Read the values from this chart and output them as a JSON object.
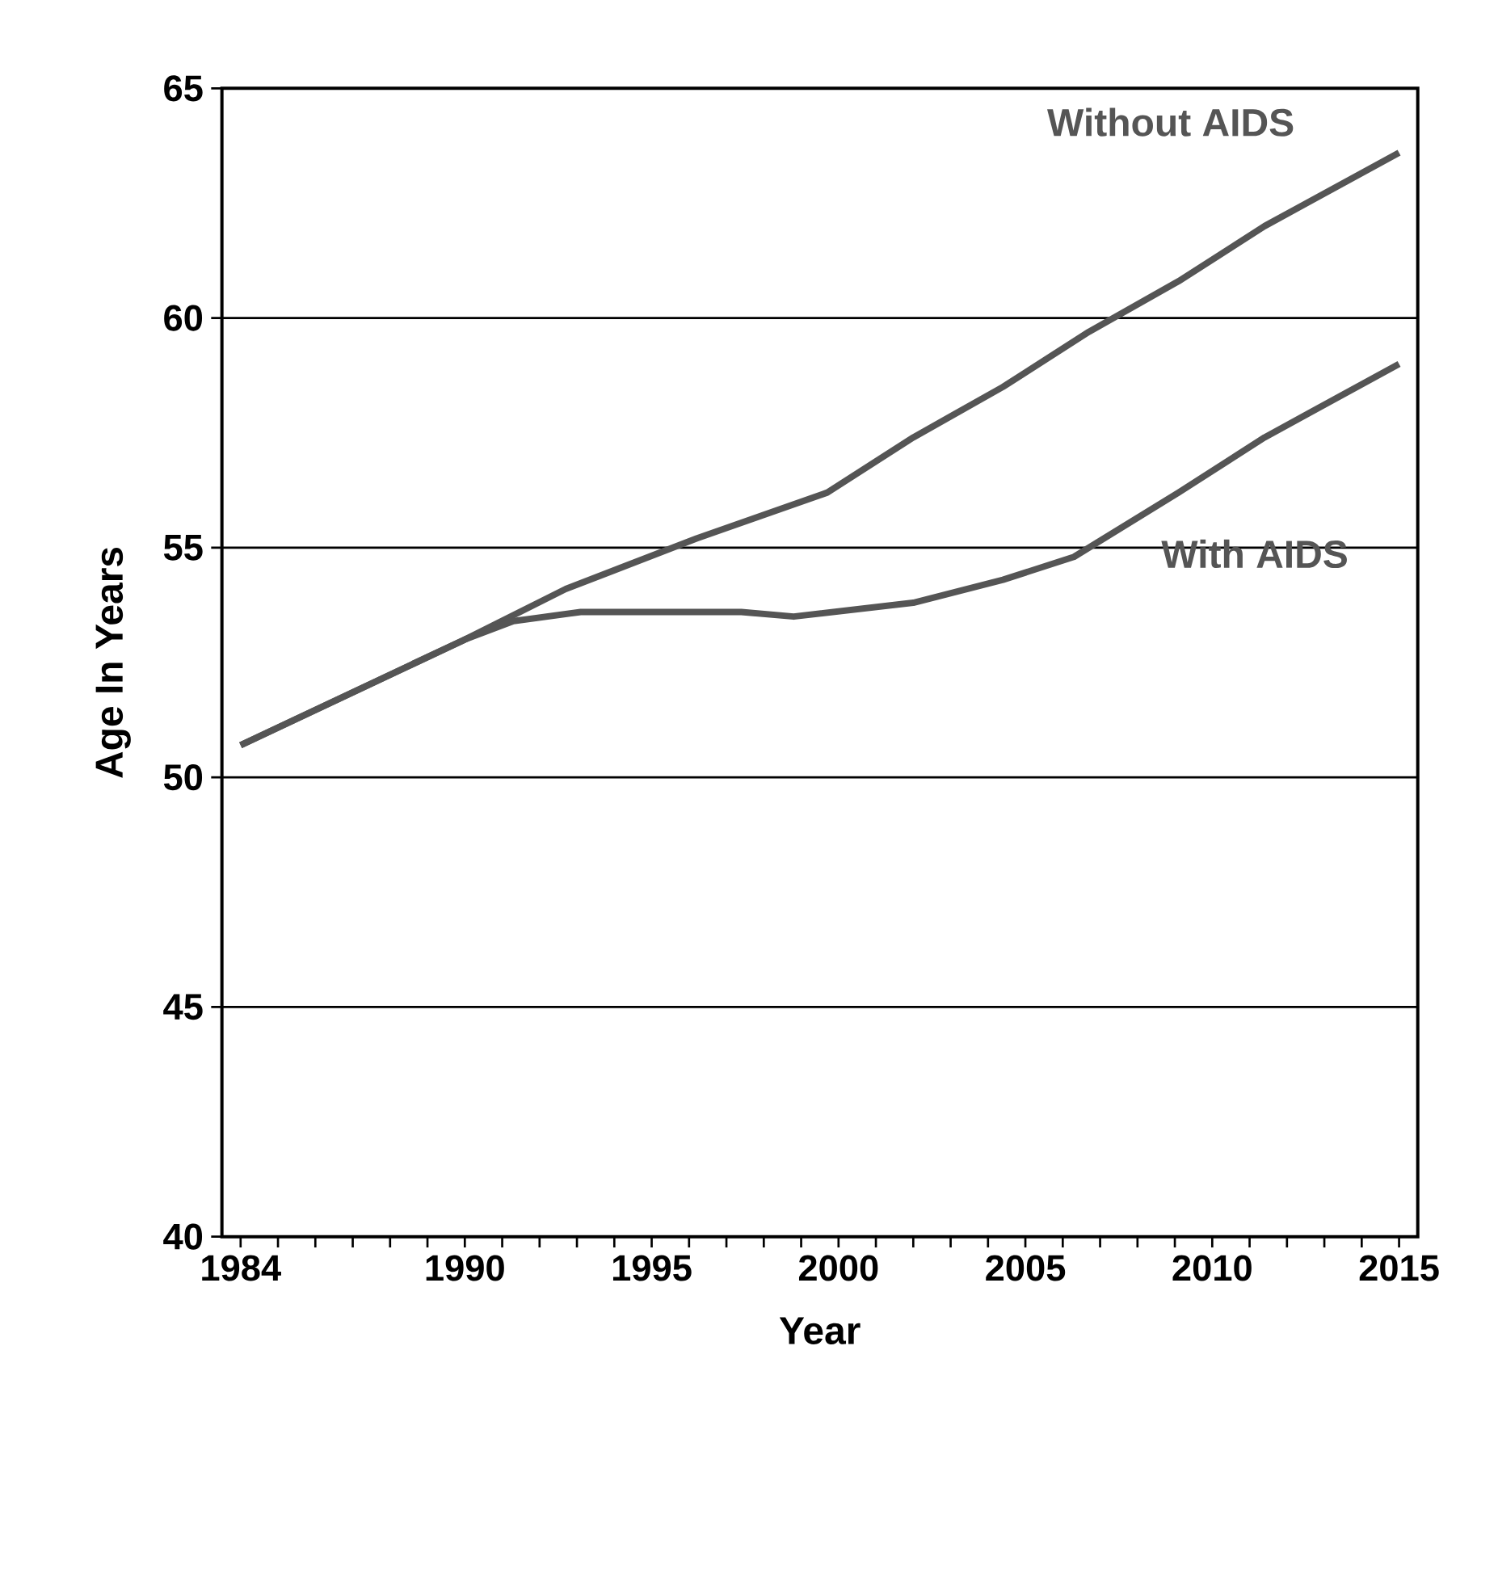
{
  "chart_data": {
    "type": "line",
    "xlabel": "Year",
    "ylabel": "Age In Years",
    "xlim": [
      1983.5,
      2015.5
    ],
    "ylim": [
      40,
      65
    ],
    "xticks": [
      1984,
      {
        "value": 1985,
        "label": null
      },
      {
        "value": 1986,
        "label": null
      },
      {
        "value": 1987,
        "label": null
      },
      {
        "value": 1988,
        "label": null
      },
      {
        "value": 1989,
        "label": null
      },
      1990,
      {
        "value": 1991,
        "label": null
      },
      {
        "value": 1992,
        "label": null
      },
      {
        "value": 1993,
        "label": null
      },
      {
        "value": 1994,
        "label": null
      },
      1995,
      {
        "value": 1996,
        "label": null
      },
      {
        "value": 1997,
        "label": null
      },
      {
        "value": 1998,
        "label": null
      },
      {
        "value": 1999,
        "label": null
      },
      2000,
      {
        "value": 2001,
        "label": null
      },
      {
        "value": 2002,
        "label": null
      },
      {
        "value": 2003,
        "label": null
      },
      {
        "value": 2004,
        "label": null
      },
      2005,
      {
        "value": 2006,
        "label": null
      },
      {
        "value": 2007,
        "label": null
      },
      {
        "value": 2008,
        "label": null
      },
      {
        "value": 2009,
        "label": null
      },
      2010,
      {
        "value": 2011,
        "label": null
      },
      {
        "value": 2012,
        "label": null
      },
      {
        "value": 2013,
        "label": null
      },
      {
        "value": 2014,
        "label": null
      },
      2015
    ],
    "yticks": [
      40,
      45,
      50,
      55,
      60,
      65
    ],
    "grid": "y",
    "marker": "none",
    "line_style": "solid",
    "series": [
      {
        "name": "Without AIDS",
        "color": "#555555",
        "x": [
          1984,
          1990,
          1992.7,
          1996.2,
          1999.7,
          2002,
          2004.4,
          2006.7,
          2009.1,
          2011.4,
          2015
        ],
        "values": [
          50.7,
          53,
          54.1,
          55.2,
          56.2,
          57.4,
          58.5,
          59.7,
          60.8,
          62,
          63.6
        ]
      },
      {
        "name": "With AIDS",
        "color": "#555555",
        "x": [
          1984,
          1990,
          1991.3,
          1993.1,
          1997.4,
          1998.8,
          2002,
          2004.4,
          2006.3,
          2009.1,
          2011.4,
          2015
        ],
        "values": [
          50.7,
          53,
          53.4,
          53.6,
          53.6,
          53.5,
          53.8,
          54.3,
          54.8,
          56.2,
          57.4,
          59
        ]
      }
    ]
  }
}
